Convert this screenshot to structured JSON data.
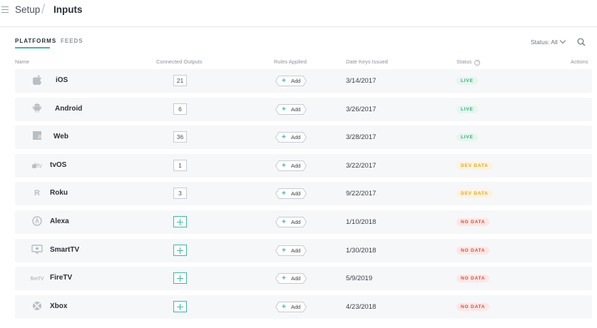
{
  "breadcrumb": {
    "root": "Setup",
    "separator": "/",
    "current": "Inputs"
  },
  "tabs": [
    {
      "label": "PLATFORMS",
      "active": true
    },
    {
      "label": "FEEDS",
      "active": false
    }
  ],
  "status_filter": {
    "label": "Status: All"
  },
  "columns": {
    "name": "Name",
    "connected_outputs": "Connected Outputs",
    "rules_applied": "Rules Applied",
    "date_keys_issued": "Date Keys Issued",
    "status": "Status",
    "status_help": "?",
    "actions": "Actions"
  },
  "rule_button_label": "Add",
  "rule_button_plus": "+",
  "rows": [
    {
      "name": "iOS",
      "icon": "apple-icon",
      "icon_text": "",
      "connected_outputs": "21",
      "date": "3/14/2017",
      "status": "LIVE",
      "status_kind": "live"
    },
    {
      "name": "Android",
      "icon": "android-icon",
      "icon_text": "",
      "connected_outputs": "6",
      "date": "3/26/2017",
      "status": "LIVE",
      "status_kind": "live"
    },
    {
      "name": "Web",
      "icon": "js-icon",
      "icon_text": "",
      "connected_outputs": "36",
      "date": "3/28/2017",
      "status": "LIVE",
      "status_kind": "live"
    },
    {
      "name": "tvOS",
      "icon": "apple-tv-icon",
      "icon_text": "tv",
      "connected_outputs": "1",
      "date": "3/22/2017",
      "status": "DEV DATA",
      "status_kind": "dev"
    },
    {
      "name": "Roku",
      "icon": "roku-icon",
      "icon_text": "R",
      "connected_outputs": "3",
      "date": "9/22/2017",
      "status": "DEV DATA",
      "status_kind": "dev"
    },
    {
      "name": "Alexa",
      "icon": "alexa-icon",
      "icon_text": "",
      "connected_outputs": null,
      "date": "1/10/2018",
      "status": "NO DATA",
      "status_kind": "none"
    },
    {
      "name": "SmartTV",
      "icon": "smart-tv-icon",
      "icon_text": "",
      "connected_outputs": null,
      "date": "1/30/2018",
      "status": "NO DATA",
      "status_kind": "none"
    },
    {
      "name": "FireTV",
      "icon": "fire-tv-icon",
      "icon_text": "fireTV",
      "connected_outputs": null,
      "date": "5/9/2019",
      "status": "NO DATA",
      "status_kind": "none"
    },
    {
      "name": "Xbox",
      "icon": "xbox-icon",
      "icon_text": "",
      "connected_outputs": null,
      "date": "4/23/2018",
      "status": "NO DATA",
      "status_kind": "none"
    }
  ],
  "colors": {
    "accent": "#3fb7a8",
    "live": "#2fae73",
    "dev_data": "#e6a817",
    "no_data": "#e14b3b",
    "row_background": "#f6f7f8"
  }
}
